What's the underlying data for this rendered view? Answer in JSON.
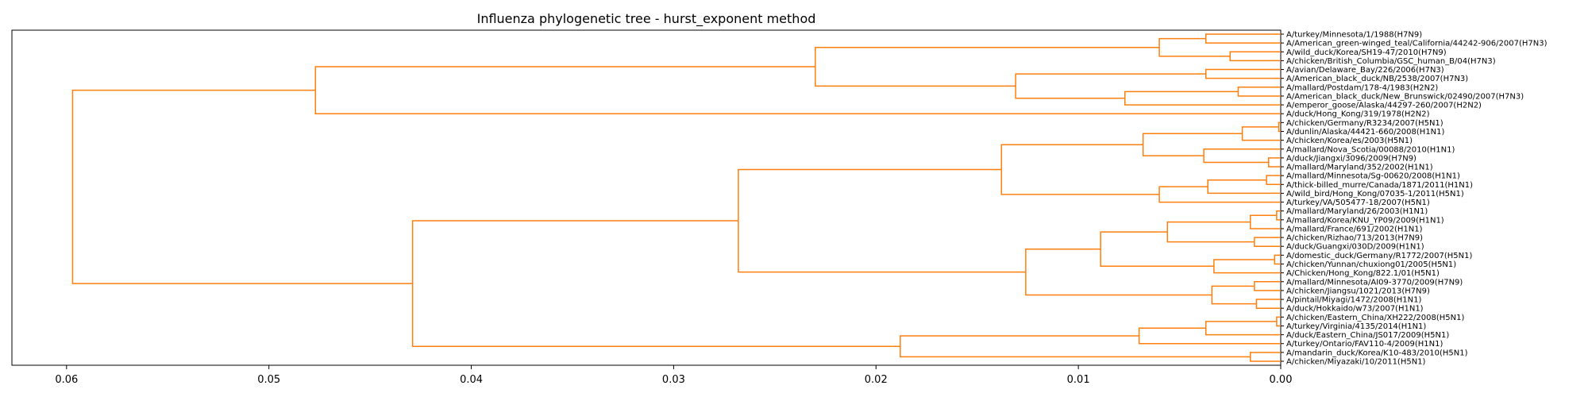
{
  "chart_data": {
    "type": "dendrogram",
    "title": "Influenza phylogenetic tree - hurst_exponent method",
    "xlabel": "",
    "ylabel": "",
    "orientation": "left",
    "xlim": [
      0.0627,
      0.0
    ],
    "xticks": [
      0.06,
      0.05,
      0.04,
      0.03,
      0.02,
      0.01,
      0.0
    ],
    "xtick_labels": [
      "0.06",
      "0.05",
      "0.04",
      "0.03",
      "0.02",
      "0.01",
      "0.00"
    ],
    "grid": false,
    "link_color": "#ff7f0e",
    "leaves": [
      "A/turkey/Minnesota/1/1988(H7N9)",
      "A/American_green-winged_teal/California/44242-906/2007(H7N3)",
      "A/wild_duck/Korea/SH19-47/2010(H7N9)",
      "A/chicken/British_Columbia/GSC_human_B/04(H7N3)",
      "A/avian/Delaware_Bay/226/2006(H7N3)",
      "A/American_black_duck/NB/2538/2007(H7N3)",
      "A/mallard/Postdam/178-4/1983(H2N2)",
      "A/American_black_duck/New_Brunswick/02490/2007(H7N3)",
      "A/emperor_goose/Alaska/44297-260/2007(H2N2)",
      "A/duck/Hong_Kong/319/1978(H2N2)",
      "A/chicken/Germany/R3234/2007(H5N1)",
      "A/dunlin/Alaska/44421-660/2008(H1N1)",
      "A/chicken/Korea/es/2003(H5N1)",
      "A/mallard/Nova_Scotia/00088/2010(H1N1)",
      "A/duck/Jiangxi/3096/2009(H7N9)",
      "A/mallard/Maryland/352/2002(H1N1)",
      "A/mallard/Minnesota/Sg-00620/2008(H1N1)",
      "A/thick-billed_murre/Canada/1871/2011(H1N1)",
      "A/wild_bird/Hong_Kong/07035-1/2011(H5N1)",
      "A/turkey/VA/505477-18/2007(H5N1)",
      "A/mallard/Maryland/26/2003(H1N1)",
      "A/mallard/Korea/KNU_YP09/2009(H1N1)",
      "A/mallard/France/691/2002(H1N1)",
      "A/chicken/Rizhao/713/2013(H7N9)",
      "A/duck/Guangxi/030D/2009(H1N1)",
      "A/domestic_duck/Germany/R1772/2007(H5N1)",
      "A/chicken/Yunnan/chuxiong01/2005(H5N1)",
      "A/Chicken/Hong_Kong/822.1/01(H5N1)",
      "A/mallard/Minnesota/AI09-3770/2009(H7N9)",
      "A/chicken/Jiangsu/1021/2013(H7N9)",
      "A/pintail/Miyagi/1472/2008(H1N1)",
      "A/duck/Hokkaido/w73/2007(H1N1)",
      "A/chicken/Eastern_China/XH222/2008(H5N1)",
      "A/turkey/Virginia/4135/2014(H1N1)",
      "A/duck/Eastern_China/JS017/2009(H5N1)",
      "A/turkey/Ontario/FAV110-4/2009(H1N1)",
      "A/mandarin_duck/Korea/K10-483/2010(H5N1)",
      "A/chicken/Miyazaki/10/2011(H5N1)"
    ],
    "merges": [
      [
        0,
        1,
        0.0037
      ],
      [
        2,
        3,
        0.0025
      ],
      [
        38,
        39,
        0.006
      ],
      [
        4,
        5,
        0.0037
      ],
      [
        6,
        7,
        0.0021
      ],
      [
        8,
        42,
        0.0077
      ],
      [
        41,
        43,
        0.0131
      ],
      [
        40,
        44,
        0.023
      ],
      [
        45,
        9,
        0.0477
      ],
      [
        10,
        11,
        0.0001
      ],
      [
        47,
        12,
        0.0019
      ],
      [
        14,
        15,
        0.0006
      ],
      [
        13,
        49,
        0.0038
      ],
      [
        48,
        50,
        0.0068
      ],
      [
        16,
        17,
        0.0007
      ],
      [
        52,
        18,
        0.0036
      ],
      [
        53,
        19,
        0.006
      ],
      [
        51,
        54,
        0.0138
      ],
      [
        20,
        21,
        0.0002
      ],
      [
        56,
        22,
        0.0015
      ],
      [
        23,
        24,
        0.0013
      ],
      [
        57,
        58,
        0.0056
      ],
      [
        25,
        26,
        0.0003
      ],
      [
        60,
        27,
        0.0033
      ],
      [
        59,
        61,
        0.0089
      ],
      [
        28,
        29,
        0.0013
      ],
      [
        30,
        31,
        0.0012
      ],
      [
        63,
        64,
        0.0034
      ],
      [
        62,
        65,
        0.0126
      ],
      [
        55,
        66,
        0.0268
      ],
      [
        32,
        33,
        0.0002
      ],
      [
        68,
        34,
        0.0037
      ],
      [
        69,
        35,
        0.007
      ],
      [
        36,
        37,
        0.0015
      ],
      [
        70,
        71,
        0.0188
      ],
      [
        67,
        72,
        0.0429
      ],
      [
        46,
        73,
        0.0597
      ]
    ]
  }
}
